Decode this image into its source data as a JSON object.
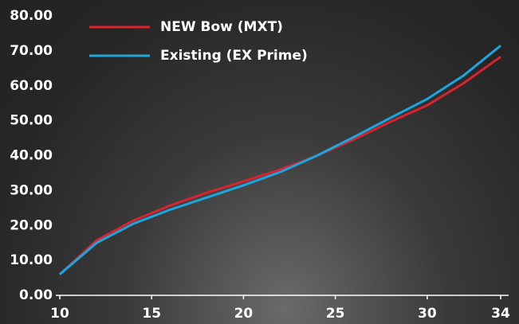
{
  "chart_data": {
    "type": "line",
    "x": [
      10,
      12,
      14,
      16,
      18,
      20,
      22,
      24,
      26,
      28,
      30,
      32,
      34
    ],
    "series": [
      {
        "name": "NEW Bow (MXT)",
        "color": "#d9232e",
        "values": [
          6,
          15.7,
          21.4,
          25.7,
          29.4,
          32.6,
          36,
          40,
          44.6,
          49.7,
          54.4,
          60.8,
          68.3
        ]
      },
      {
        "name": "Existing (EX Prime)",
        "color": "#1ba6e0",
        "values": [
          6,
          15,
          20.5,
          24.5,
          28,
          31.5,
          35.3,
          40,
          45.3,
          50.8,
          56.2,
          63,
          71.5
        ]
      }
    ],
    "xlim": [
      10,
      34
    ],
    "xticks": [
      10,
      15,
      20,
      25,
      30,
      34
    ],
    "ylim": [
      0,
      80
    ],
    "yticks": [
      {
        "value": 0,
        "label": "0.00"
      },
      {
        "value": 10,
        "label": "10.00"
      },
      {
        "value": 20,
        "label": "20.00"
      },
      {
        "value": 30,
        "label": "30.00"
      },
      {
        "value": 40,
        "label": "40.00"
      },
      {
        "value": 50,
        "label": "50.00"
      },
      {
        "value": 60,
        "label": "60.00"
      },
      {
        "value": 70,
        "label": "70.00"
      },
      {
        "value": 80,
        "label": "80.00"
      }
    ],
    "legend": "top-left"
  }
}
